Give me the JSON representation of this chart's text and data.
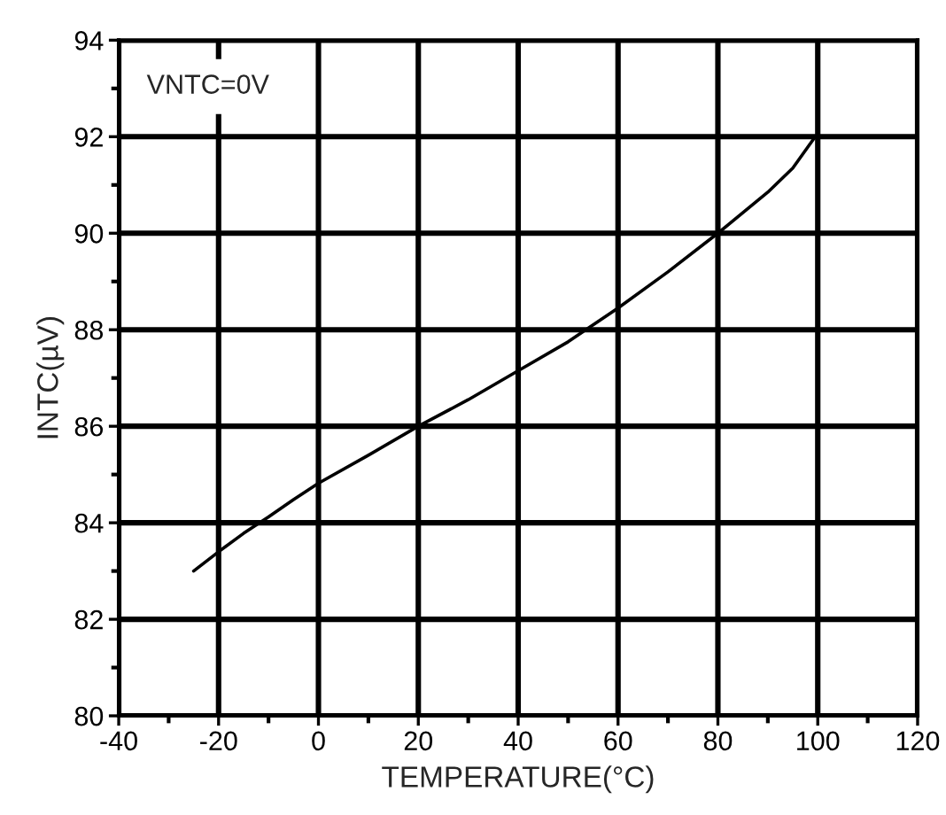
{
  "chart_data": {
    "type": "line",
    "xlabel": "TEMPERATURE(°C)",
    "ylabel": "INTC(µV)",
    "annotations": [
      "VNTC=0V"
    ],
    "x": [
      -25,
      -20,
      -15,
      -10,
      -5,
      0,
      10,
      20,
      30,
      40,
      50,
      60,
      70,
      80,
      90,
      95,
      99.5
    ],
    "series": [
      {
        "color": "#000000",
        "line_style": "solid",
        "values": [
          83.0,
          83.4,
          83.78,
          84.12,
          84.48,
          84.82,
          85.4,
          86.0,
          86.55,
          87.15,
          87.75,
          88.45,
          89.2,
          90.0,
          90.85,
          91.35,
          92.0
        ]
      }
    ],
    "xlim": [
      -40,
      120
    ],
    "xticks": [
      -40,
      {
        "value": -30,
        "label": null
      },
      -20,
      {
        "value": -10,
        "label": null
      },
      0,
      {
        "value": 10,
        "label": null
      },
      20,
      {
        "value": 30,
        "label": null
      },
      40,
      {
        "value": 50,
        "label": null
      },
      60,
      {
        "value": 70,
        "label": null
      },
      80,
      {
        "value": 90,
        "label": null
      },
      100,
      {
        "value": 110,
        "label": null
      },
      120
    ],
    "ylim": [
      80,
      94
    ],
    "yticks": [
      80,
      {
        "value": 81,
        "label": null
      },
      82,
      {
        "value": 83,
        "label": null
      },
      84,
      {
        "value": 85,
        "label": null
      },
      86,
      {
        "value": 87,
        "label": null
      },
      88,
      {
        "value": 89,
        "label": null
      },
      90,
      {
        "value": 91,
        "label": null
      },
      92,
      {
        "value": 93,
        "label": null
      },
      94
    ],
    "grid": true
  }
}
